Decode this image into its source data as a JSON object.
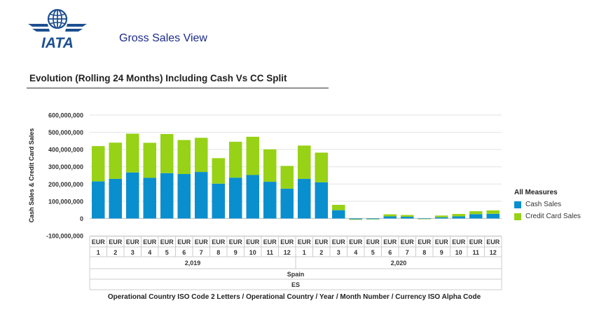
{
  "header": {
    "logo_text": "IATA",
    "title": "Gross Sales View"
  },
  "section": {
    "title": "Evolution (Rolling 24 Months) Including Cash Vs CC Split"
  },
  "colors": {
    "cash": "#0a8fce",
    "credit": "#97d216",
    "grid": "#e3e3e3",
    "table_border": "#cccccc",
    "brand": "#1d4f91"
  },
  "legend": {
    "title": "All Measures",
    "items": [
      {
        "label": "Cash Sales",
        "color": "#0a8fce"
      },
      {
        "label": "Credit Card Sales",
        "color": "#97d216"
      }
    ]
  },
  "chart_data": {
    "type": "bar",
    "stacked": true,
    "ylabel": "Cash Sales & Credit Card Sales",
    "xlabel": "Operational Country ISO Code 2 Letters / Operational Country / Year / Month Number / Currency ISO Alpha Code",
    "ylim": [
      -100000000,
      600000000
    ],
    "yticks": [
      -100000000,
      0,
      100000000,
      200000000,
      300000000,
      400000000,
      500000000,
      600000000
    ],
    "ytick_labels": [
      "-100,000,000",
      "0",
      "100,000,000",
      "200,000,000",
      "300,000,000",
      "400,000,000",
      "500,000,000",
      "600,000,000"
    ],
    "grid": true,
    "legend_position": "right",
    "categories": [
      "1",
      "2",
      "3",
      "4",
      "5",
      "6",
      "7",
      "8",
      "9",
      "10",
      "11",
      "12",
      "1",
      "2",
      "3",
      "4",
      "5",
      "6",
      "7",
      "8",
      "9",
      "10",
      "11",
      "12"
    ],
    "currency": [
      "EUR",
      "EUR",
      "EUR",
      "EUR",
      "EUR",
      "EUR",
      "EUR",
      "EUR",
      "EUR",
      "EUR",
      "EUR",
      "EUR",
      "EUR",
      "EUR",
      "EUR",
      "EUR",
      "EUR",
      "EUR",
      "EUR",
      "EUR",
      "EUR",
      "EUR",
      "EUR",
      "EUR"
    ],
    "years": [
      {
        "label": "2,019",
        "count": 12
      },
      {
        "label": "2,020",
        "count": 12
      }
    ],
    "country": "Spain",
    "iso": "ES",
    "series": [
      {
        "name": "Cash Sales",
        "values": [
          215000000,
          230000000,
          267000000,
          236000000,
          263000000,
          258000000,
          270000000,
          202000000,
          237000000,
          252000000,
          213000000,
          173000000,
          230000000,
          210000000,
          48000000,
          -5000000,
          -4000000,
          12000000,
          10000000,
          -3000000,
          7000000,
          12000000,
          25000000,
          27000000
        ]
      },
      {
        "name": "Credit Card Sales",
        "values": [
          205000000,
          210000000,
          225000000,
          203000000,
          227000000,
          197000000,
          198000000,
          148000000,
          208000000,
          222000000,
          188000000,
          132000000,
          193000000,
          172000000,
          31000000,
          -3000000,
          -2000000,
          12000000,
          10000000,
          -2000000,
          10000000,
          14000000,
          17000000,
          20000000
        ]
      }
    ]
  }
}
